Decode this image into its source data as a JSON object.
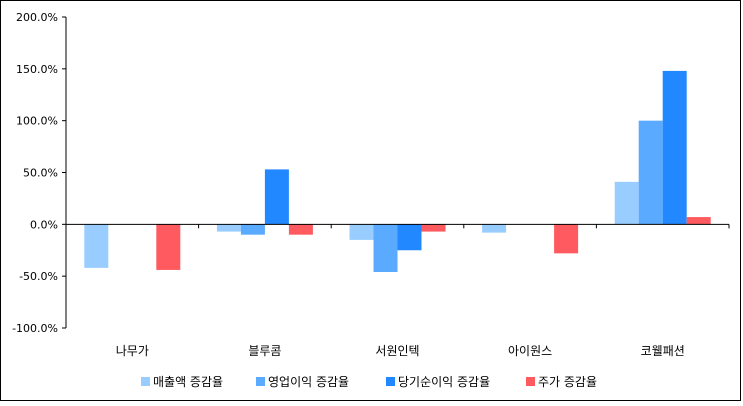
{
  "chart_data": {
    "type": "bar",
    "categories": [
      "나무가",
      "블루콤",
      "서원인텍",
      "아이원스",
      "코웰패션"
    ],
    "series": [
      {
        "name": "매출액 증감율",
        "color": "#99ccff",
        "values": [
          -42,
          -7,
          -15,
          -8,
          41
        ]
      },
      {
        "name": "영업이익 증감율",
        "color": "#5aaaff",
        "values": [
          null,
          -10,
          -46,
          null,
          100
        ]
      },
      {
        "name": "당기순이익 증감율",
        "color": "#2288ff",
        "values": [
          null,
          53,
          -25,
          null,
          148
        ]
      },
      {
        "name": "주가 증감율",
        "color": "#ff5a5f",
        "values": [
          -44,
          -10,
          -7,
          -28,
          7
        ]
      }
    ],
    "yticks": [
      "200.0%",
      "150.0%",
      "100.0%",
      "50.0%",
      "0.0%",
      "-50.0%",
      "-100.0%"
    ],
    "ylim": [
      -100,
      200
    ],
    "grid": false,
    "legend_position": "bottom"
  }
}
